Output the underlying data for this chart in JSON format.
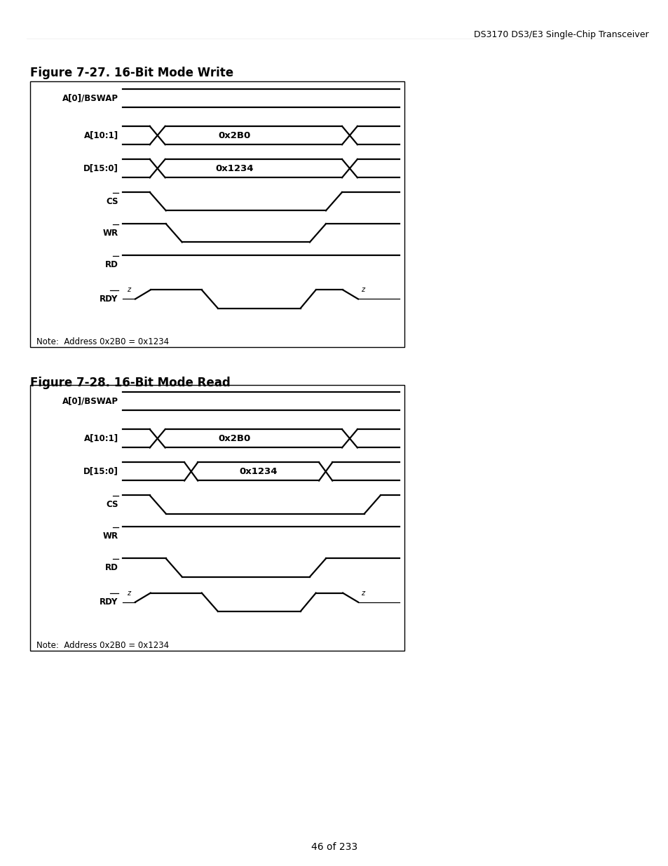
{
  "header_text": "DS3170 DS3/E3 Single-Chip Transceiver",
  "fig1_title": "Figure 7-27. 16-Bit Mode Write",
  "fig2_title": "Figure 7-28. 16-Bit Mode Read",
  "note_text": "Note:  Address 0x2B0 = 0x1234",
  "page_text": "46 of 233",
  "bg_color": "#ffffff",
  "line_color": "#000000",
  "bus_label_A": "0x2B0",
  "bus_label_D": "0x1234",
  "signals": [
    "A[0]/BSWAP",
    "A[10:1]",
    "D[15:0]",
    "CS",
    "WR",
    "RD",
    "RDY"
  ],
  "overline_signals": [
    "CS",
    "WR",
    "RD",
    "RDY"
  ]
}
